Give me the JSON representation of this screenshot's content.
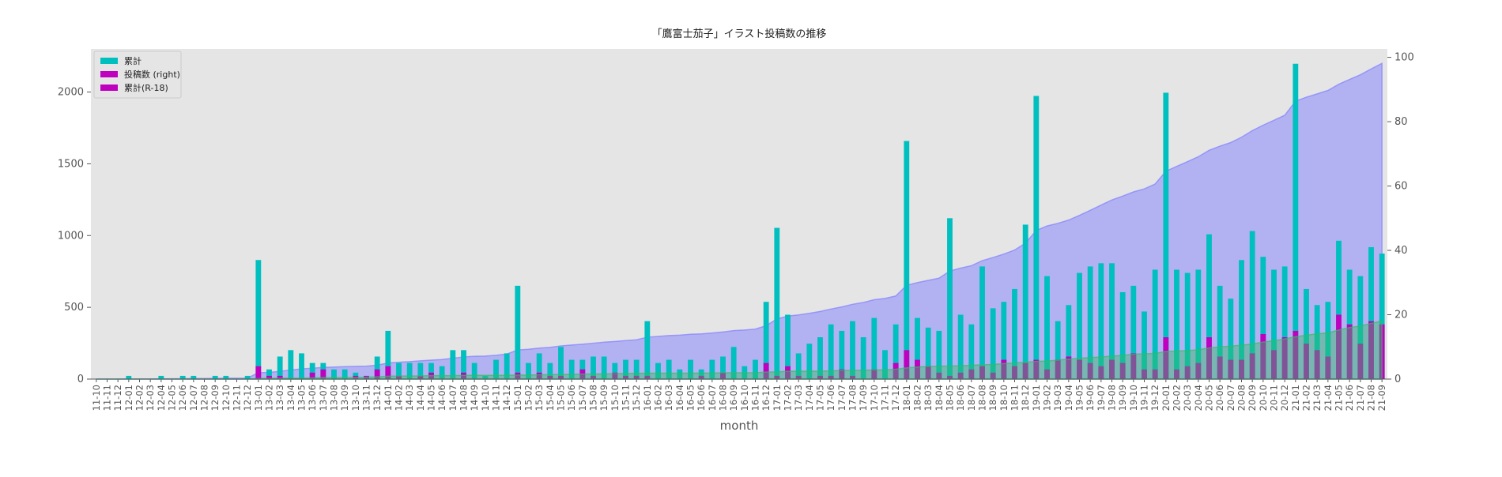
{
  "chart_data": {
    "type": "bar",
    "title": "「鷹富士茄子」イラスト投稿数の推移",
    "xlabel": "month",
    "categories": [
      "11-10",
      "11-11",
      "11-12",
      "12-01",
      "12-02",
      "12-03",
      "12-04",
      "12-05",
      "12-06",
      "12-07",
      "12-08",
      "12-09",
      "12-10",
      "12-11",
      "12-12",
      "13-01",
      "13-02",
      "13-03",
      "13-04",
      "13-05",
      "13-06",
      "13-07",
      "13-08",
      "13-09",
      "13-10",
      "13-11",
      "13-12",
      "14-01",
      "14-02",
      "14-03",
      "14-04",
      "14-05",
      "14-06",
      "14-07",
      "14-08",
      "14-09",
      "14-10",
      "14-11",
      "14-12",
      "15-01",
      "15-02",
      "15-03",
      "15-04",
      "15-05",
      "15-06",
      "15-07",
      "15-08",
      "15-09",
      "15-10",
      "15-11",
      "15-12",
      "16-01",
      "16-02",
      "16-03",
      "16-04",
      "16-05",
      "16-06",
      "16-07",
      "16-08",
      "16-09",
      "16-10",
      "16-11",
      "16-12",
      "17-01",
      "17-02",
      "17-03",
      "17-04",
      "17-05",
      "17-06",
      "17-07",
      "17-08",
      "17-09",
      "17-10",
      "17-11",
      "17-12",
      "18-01",
      "18-02",
      "18-03",
      "18-04",
      "18-05",
      "18-06",
      "18-07",
      "18-08",
      "18-09",
      "18-10",
      "18-11",
      "18-12",
      "19-01",
      "19-02",
      "19-03",
      "19-04",
      "19-05",
      "19-06",
      "19-07",
      "19-08",
      "19-09",
      "19-10",
      "19-11",
      "19-12",
      "20-01",
      "20-02",
      "20-03",
      "20-04",
      "20-05",
      "20-06",
      "20-07",
      "20-08",
      "20-09",
      "20-10",
      "20-11",
      "20-12",
      "21-01",
      "21-02",
      "21-03",
      "21-04",
      "21-05",
      "21-06",
      "21-07",
      "21-08",
      "21-09"
    ],
    "series": [
      {
        "name": "累計",
        "type": "area",
        "axis": "y",
        "color": "#8080ff",
        "alpha": 0.5,
        "legend_color": "#00bfbf",
        "values": [
          0,
          0,
          0,
          1,
          1,
          1,
          2,
          2,
          3,
          4,
          4,
          5,
          6,
          6,
          7,
          44,
          47,
          54,
          63,
          71,
          76,
          81,
          84,
          87,
          89,
          90,
          97,
          112,
          117,
          122,
          127,
          132,
          136,
          145,
          154,
          159,
          160,
          166,
          174,
          203,
          208,
          216,
          221,
          231,
          237,
          243,
          250,
          257,
          262,
          268,
          274,
          292,
          297,
          303,
          306,
          312,
          315,
          321,
          328,
          338,
          342,
          348,
          372,
          419,
          439,
          447,
          458,
          471,
          488,
          503,
          521,
          534,
          553,
          562,
          579,
          653,
          672,
          688,
          703,
          753,
          773,
          790,
          825,
          847,
          871,
          899,
          947,
          1035,
          1067,
          1085,
          1108,
          1141,
          1176,
          1212,
          1248,
          1275,
          1304,
          1325,
          1359,
          1448,
          1482,
          1515,
          1549,
          1594,
          1623,
          1648,
          1685,
          1731,
          1769,
          1803,
          1838,
          1936,
          1964,
          1987,
          2011,
          2054,
          2088,
          2120,
          2161,
          2200
        ]
      },
      {
        "name": "投稿数 (right)",
        "type": "bar",
        "axis": "y2",
        "color": "#00bfbf",
        "legend_color": "#bf00bf",
        "values": [
          0,
          0,
          0,
          1,
          0,
          0,
          1,
          0,
          1,
          1,
          0,
          1,
          1,
          0,
          1,
          37,
          3,
          7,
          9,
          8,
          5,
          5,
          3,
          3,
          2,
          1,
          7,
          15,
          5,
          5,
          5,
          5,
          4,
          9,
          9,
          5,
          1,
          6,
          8,
          29,
          5,
          8,
          5,
          10,
          6,
          6,
          7,
          7,
          5,
          6,
          6,
          18,
          5,
          6,
          3,
          6,
          3,
          6,
          7,
          10,
          4,
          6,
          24,
          47,
          20,
          8,
          11,
          13,
          17,
          15,
          18,
          13,
          19,
          9,
          17,
          74,
          19,
          16,
          15,
          50,
          20,
          17,
          35,
          22,
          24,
          28,
          48,
          88,
          32,
          18,
          23,
          33,
          35,
          36,
          36,
          27,
          29,
          21,
          34,
          89,
          34,
          33,
          34,
          45,
          29,
          25,
          37,
          46,
          38,
          34,
          35,
          98,
          28,
          23,
          24,
          43,
          34,
          32,
          41,
          39
        ]
      },
      {
        "type": "bar",
        "axis": "y2",
        "color": "#bf00bf",
        "values": [
          0,
          0,
          0,
          0,
          0,
          0,
          0,
          0,
          0,
          0,
          0,
          0,
          0,
          0,
          0,
          4,
          1,
          1,
          0,
          0,
          2,
          3,
          0,
          0,
          1,
          1,
          3,
          4,
          1,
          0,
          1,
          2,
          0,
          0,
          2,
          0,
          0,
          0,
          0,
          2,
          0,
          2,
          1,
          1,
          0,
          3,
          1,
          0,
          2,
          1,
          1,
          1,
          0,
          0,
          0,
          0,
          1,
          0,
          2,
          0,
          0,
          0,
          5,
          1,
          4,
          1,
          0,
          1,
          1,
          3,
          1,
          0,
          3,
          0,
          5,
          9,
          6,
          4,
          2,
          1,
          2,
          3,
          4,
          2,
          6,
          4,
          5,
          6,
          3,
          6,
          7,
          6,
          5,
          4,
          6,
          5,
          8,
          3,
          3,
          13,
          3,
          4,
          5,
          13,
          7,
          6,
          6,
          8,
          14,
          9,
          13,
          15,
          11,
          9,
          7,
          20,
          17,
          11,
          18,
          17
        ]
      },
      {
        "name": "累計(R-18)",
        "type": "area",
        "axis": "y",
        "color": "#33bb66",
        "alpha": 0.45,
        "legend_color": "#bf00bf",
        "values": [
          0,
          0,
          0,
          0,
          0,
          0,
          0,
          0,
          0,
          0,
          0,
          0,
          0,
          0,
          0,
          4,
          5,
          6,
          6,
          6,
          8,
          11,
          11,
          11,
          12,
          13,
          16,
          20,
          21,
          21,
          22,
          24,
          24,
          24,
          26,
          26,
          26,
          26,
          26,
          28,
          28,
          30,
          31,
          32,
          32,
          35,
          36,
          36,
          38,
          39,
          40,
          41,
          41,
          41,
          41,
          41,
          42,
          42,
          44,
          44,
          44,
          44,
          49,
          50,
          54,
          55,
          55,
          56,
          57,
          60,
          61,
          61,
          64,
          64,
          69,
          78,
          84,
          88,
          90,
          91,
          93,
          96,
          100,
          102,
          108,
          112,
          117,
          123,
          126,
          132,
          139,
          145,
          150,
          154,
          160,
          165,
          173,
          176,
          179,
          192,
          195,
          199,
          204,
          217,
          224,
          230,
          236,
          244,
          258,
          267,
          280,
          295,
          306,
          315,
          322,
          342,
          359,
          370,
          388,
          405
        ]
      }
    ],
    "ylim": [
      0,
      2300
    ],
    "yticks": [
      0,
      500,
      1000,
      1500,
      2000
    ],
    "y2lim": [
      0,
      102.6
    ],
    "y2ticks": [
      0,
      20,
      40,
      60,
      80,
      100
    ],
    "grid": false,
    "legend": "upper left",
    "background": "#e5e5e5"
  }
}
